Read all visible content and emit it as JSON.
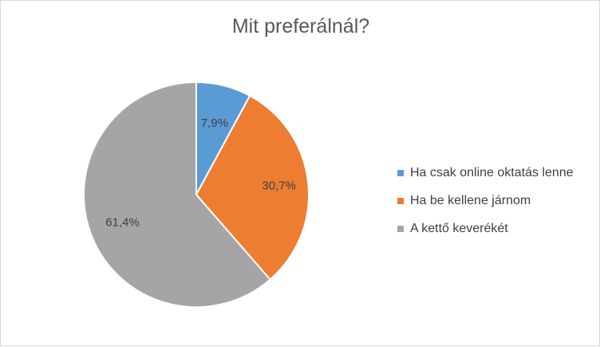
{
  "chart_data": {
    "type": "pie",
    "title": "Mit preferálnál?",
    "categories": [
      "Ha csak online oktatás lenne",
      "Ha be kellene járnom",
      "A kettő keverékét"
    ],
    "values": [
      7.9,
      30.7,
      61.4
    ],
    "data_labels": [
      "7,9%",
      "30,7%",
      "61,4%"
    ],
    "colors": [
      "#5b9bd5",
      "#ed7d31",
      "#a5a5a5"
    ],
    "legend_position": "right"
  }
}
